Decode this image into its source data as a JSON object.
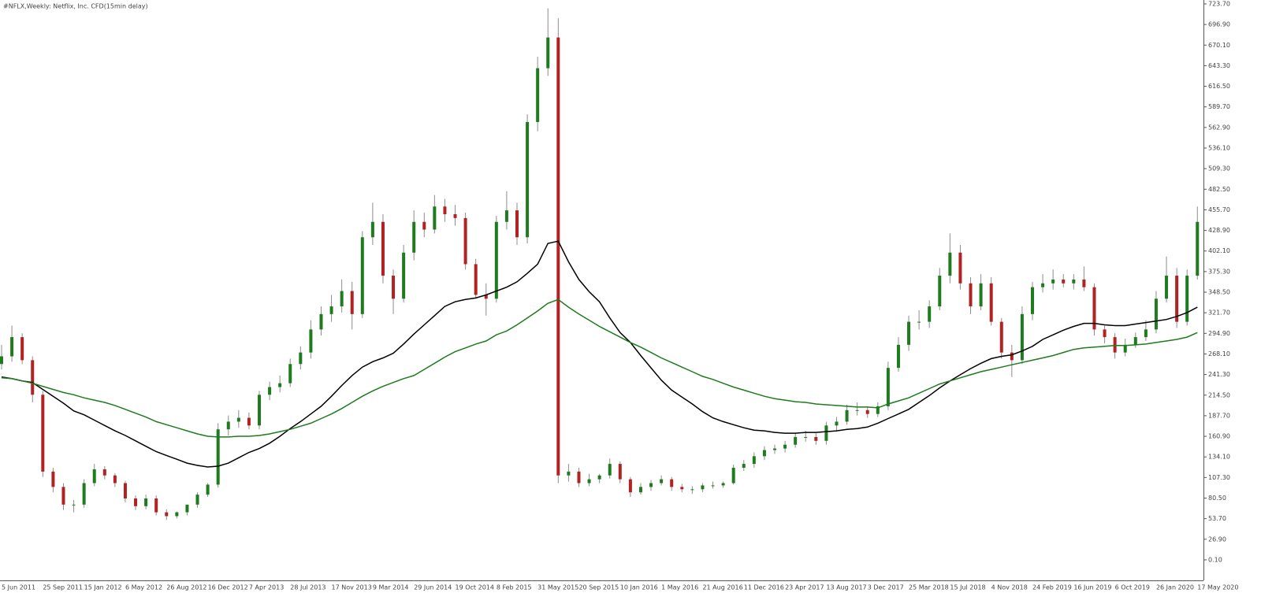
{
  "chart_data": {
    "type": "candlestick",
    "title": "#NFLX,Weekly: Netflix, Inc. CFD(15min delay)",
    "categories": [
      "5 Jun 2011",
      null,
      null,
      null,
      "25 Sep 2011",
      null,
      null,
      null,
      "15 Jan 2012",
      null,
      null,
      null,
      "6 May 2012",
      null,
      null,
      null,
      "26 Aug 2012",
      null,
      null,
      null,
      "16 Dec 2012",
      null,
      null,
      null,
      "7 Apr 2013",
      null,
      null,
      null,
      "28 Jul 2013",
      null,
      null,
      null,
      "17 Nov 2013",
      null,
      null,
      null,
      "9 Mar 2014",
      null,
      null,
      null,
      "29 Jun 2014",
      null,
      null,
      null,
      "19 Oct 2014",
      null,
      null,
      null,
      "8 Feb 2015",
      null,
      null,
      null,
      "31 May 2015",
      null,
      null,
      null,
      "20 Sep 2015",
      null,
      null,
      null,
      "10 Jan 2016",
      null,
      null,
      null,
      "1 May 2016",
      null,
      null,
      null,
      "21 Aug 2016",
      null,
      null,
      null,
      "11 Dec 2016",
      null,
      null,
      null,
      "23 Apr 2017",
      null,
      null,
      null,
      "13 Aug 2017",
      null,
      null,
      null,
      "3 Dec 2017",
      null,
      null,
      null,
      "25 Mar 2018",
      null,
      null,
      null,
      "15 Jul 2018",
      null,
      null,
      null,
      "4 Nov 2018",
      null,
      null,
      null,
      "24 Feb 2019",
      null,
      null,
      null,
      "16 Jun 2019",
      null,
      null,
      null,
      "6 Oct 2019",
      null,
      null,
      null,
      "26 Jan 2020",
      null,
      null,
      null,
      "17 May 2020"
    ],
    "open": [
      255,
      265,
      290,
      260,
      215,
      115,
      95,
      72,
      72,
      100,
      118,
      110,
      100,
      80,
      70,
      80,
      62,
      57,
      62,
      72,
      85,
      98,
      170,
      180,
      185,
      175,
      215,
      225,
      230,
      255,
      270,
      300,
      320,
      330,
      350,
      320,
      420,
      440,
      370,
      340,
      400,
      440,
      430,
      460,
      450,
      445,
      385,
      345,
      340,
      440,
      455,
      420,
      570,
      640,
      680,
      110,
      115,
      100,
      105,
      110,
      125,
      105,
      88,
      95,
      100,
      105,
      95,
      92,
      92,
      97,
      97,
      100,
      120,
      125,
      135,
      143,
      145,
      150,
      160,
      160,
      155,
      175,
      180,
      195,
      195,
      190,
      200,
      250,
      280,
      310,
      310,
      330,
      370,
      400,
      360,
      330,
      360,
      310,
      270,
      260,
      320,
      355,
      360,
      365,
      360,
      365,
      355,
      300,
      290,
      270,
      280,
      290,
      300,
      340,
      370,
      310,
      370
    ],
    "high": [
      280,
      305,
      295,
      265,
      220,
      120,
      100,
      78,
      105,
      125,
      122,
      113,
      103,
      84,
      85,
      84,
      66,
      63,
      66,
      88,
      100,
      178,
      188,
      195,
      192,
      220,
      232,
      240,
      262,
      278,
      312,
      330,
      345,
      365,
      362,
      428,
      465,
      450,
      378,
      410,
      455,
      452,
      475,
      470,
      462,
      452,
      392,
      360,
      448,
      480,
      465,
      580,
      655,
      718,
      705,
      125,
      120,
      112,
      112,
      132,
      128,
      108,
      100,
      104,
      110,
      108,
      99,
      96,
      100,
      102,
      102,
      124,
      130,
      140,
      148,
      150,
      155,
      165,
      168,
      165,
      180,
      186,
      202,
      205,
      200,
      205,
      258,
      290,
      318,
      325,
      338,
      380,
      425,
      410,
      368,
      372,
      368,
      315,
      280,
      330,
      362,
      372,
      378,
      372,
      372,
      382,
      360,
      305,
      295,
      288,
      296,
      312,
      350,
      395,
      380,
      378,
      460
    ],
    "low": [
      248,
      258,
      255,
      205,
      108,
      88,
      65,
      62,
      68,
      96,
      105,
      95,
      75,
      65,
      66,
      58,
      52,
      54,
      58,
      68,
      82,
      94,
      162,
      172,
      170,
      170,
      208,
      218,
      225,
      248,
      262,
      292,
      310,
      322,
      300,
      315,
      410,
      360,
      320,
      335,
      390,
      420,
      425,
      440,
      435,
      378,
      340,
      318,
      335,
      430,
      410,
      412,
      558,
      630,
      100,
      102,
      95,
      96,
      100,
      106,
      100,
      82,
      85,
      90,
      97,
      90,
      88,
      86,
      88,
      93,
      94,
      98,
      116,
      120,
      130,
      138,
      140,
      146,
      154,
      150,
      150,
      168,
      176,
      188,
      185,
      186,
      195,
      245,
      272,
      300,
      302,
      325,
      360,
      352,
      320,
      325,
      305,
      262,
      238,
      255,
      312,
      348,
      352,
      355,
      352,
      350,
      292,
      282,
      262,
      265,
      276,
      285,
      295,
      335,
      302,
      305,
      365
    ],
    "close": [
      265,
      290,
      260,
      215,
      115,
      95,
      72,
      72,
      100,
      118,
      110,
      100,
      80,
      70,
      80,
      62,
      57,
      62,
      72,
      85,
      98,
      170,
      180,
      185,
      175,
      215,
      225,
      230,
      255,
      270,
      300,
      320,
      330,
      350,
      320,
      420,
      440,
      370,
      340,
      400,
      440,
      430,
      460,
      450,
      445,
      385,
      345,
      340,
      440,
      455,
      420,
      570,
      640,
      680,
      110,
      115,
      100,
      105,
      110,
      125,
      105,
      88,
      95,
      100,
      105,
      95,
      92,
      92,
      97,
      97,
      100,
      120,
      125,
      135,
      143,
      145,
      150,
      160,
      160,
      155,
      175,
      180,
      195,
      195,
      190,
      200,
      250,
      280,
      310,
      310,
      330,
      370,
      400,
      360,
      330,
      360,
      310,
      270,
      260,
      320,
      355,
      360,
      365,
      360,
      365,
      355,
      300,
      290,
      270,
      280,
      290,
      300,
      340,
      370,
      310,
      370,
      440
    ],
    "up_color": "#1e7b1e",
    "down_color": "#b22222",
    "wick_color": "#8c8c8c",
    "series": [
      {
        "color": "#000000",
        "values": [
          238,
          236,
          233,
          231,
          222,
          213,
          204,
          194,
          189,
          182,
          175,
          168,
          162,
          155,
          148,
          141,
          136,
          131,
          126,
          123,
          121,
          122,
          126,
          133,
          140,
          145,
          152,
          161,
          171,
          180,
          190,
          200,
          213,
          227,
          240,
          251,
          258,
          263,
          269,
          281,
          294,
          306,
          318,
          330,
          336,
          339,
          341,
          345,
          350,
          355,
          362,
          373,
          385,
          412,
          415,
          388,
          365,
          349,
          336,
          315,
          296,
          283,
          266,
          250,
          234,
          221,
          212,
          203,
          193,
          185,
          180,
          176,
          172,
          169,
          168,
          166,
          165,
          165,
          166,
          166,
          167,
          168,
          170,
          171,
          173,
          178,
          184,
          190,
          196,
          205,
          214,
          224,
          233,
          241,
          249,
          256,
          262,
          265,
          267,
          272,
          278,
          287,
          293,
          299,
          304,
          308,
          308,
          306,
          305,
          305,
          307,
          309,
          311,
          313,
          317,
          322,
          329
        ]
      },
      {
        "color": "#1e7b1e",
        "values": [
          237,
          236,
          233,
          230,
          226,
          222,
          218,
          215,
          211,
          208,
          205,
          201,
          196,
          191,
          186,
          180,
          176,
          172,
          168,
          164,
          161,
          160,
          160,
          161,
          161,
          162,
          164,
          167,
          170,
          174,
          178,
          184,
          190,
          197,
          205,
          213,
          220,
          226,
          231,
          236,
          240,
          248,
          256,
          264,
          271,
          276,
          281,
          285,
          293,
          298,
          306,
          315,
          324,
          334,
          339,
          329,
          320,
          312,
          304,
          297,
          290,
          283,
          277,
          270,
          263,
          257,
          251,
          245,
          239,
          235,
          230,
          225,
          221,
          217,
          213,
          210,
          208,
          206,
          205,
          203,
          202,
          201,
          200,
          199,
          199,
          198,
          203,
          207,
          211,
          217,
          223,
          229,
          233,
          237,
          241,
          245,
          248,
          251,
          254,
          257,
          260,
          263,
          266,
          270,
          274,
          276,
          277,
          278,
          279,
          279,
          280,
          281,
          283,
          285,
          287,
          290,
          296
        ]
      }
    ],
    "ylim": [
      -26.6,
      728.8
    ],
    "yticks": [
      {
        "value": 723.7,
        "label": "723.70"
      },
      {
        "value": 696.9,
        "label": "696.90"
      },
      {
        "value": 670.1,
        "label": "670.10"
      },
      {
        "value": 643.3,
        "label": "643.30"
      },
      {
        "value": 616.5,
        "label": "616.50"
      },
      {
        "value": 589.7,
        "label": "589.70"
      },
      {
        "value": 562.9,
        "label": "562.90"
      },
      {
        "value": 536.1,
        "label": "536.10"
      },
      {
        "value": 509.3,
        "label": "509.30"
      },
      {
        "value": 482.5,
        "label": "482.50"
      },
      {
        "value": 455.7,
        "label": "455.70"
      },
      {
        "value": 428.9,
        "label": "428.90"
      },
      {
        "value": 402.1,
        "label": "402.10"
      },
      {
        "value": 375.3,
        "label": "375.30"
      },
      {
        "value": 348.5,
        "label": "348.50"
      },
      {
        "value": 321.7,
        "label": "321.70"
      },
      {
        "value": 294.9,
        "label": "294.90"
      },
      {
        "value": 268.1,
        "label": "268.10"
      },
      {
        "value": 241.3,
        "label": "241.30"
      },
      {
        "value": 214.5,
        "label": "214.50"
      },
      {
        "value": 187.7,
        "label": "187.70"
      },
      {
        "value": 160.9,
        "label": "160.90"
      },
      {
        "value": 134.1,
        "label": "134.10"
      },
      {
        "value": 107.3,
        "label": "107.30"
      },
      {
        "value": 80.5,
        "label": "80.50"
      },
      {
        "value": 53.7,
        "label": "53.70"
      },
      {
        "value": 26.9,
        "label": "26.90"
      },
      {
        "value": 0.1,
        "label": "0.10"
      }
    ]
  }
}
